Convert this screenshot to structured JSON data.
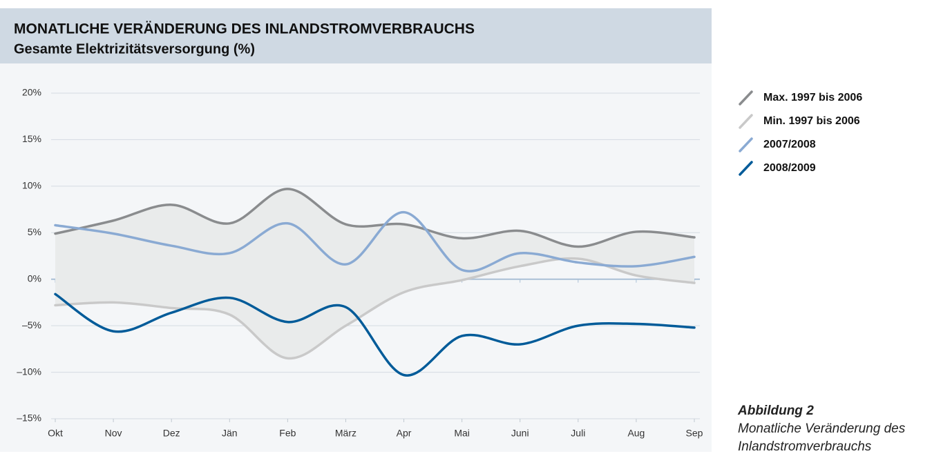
{
  "chart_data": {
    "type": "line",
    "title": "MONATLICHE VERÄNDERUNG DES INLANDSTROMVERBRAUCHS",
    "subtitle": "Gesamte Elektrizitätsversorgung (%)",
    "categories": [
      "Okt",
      "Nov",
      "Dez",
      "Jän",
      "Feb",
      "März",
      "Apr",
      "Mai",
      "Juni",
      "Juli",
      "Aug",
      "Sep"
    ],
    "series": [
      {
        "name": "Max. 1997 bis 2006",
        "color": "#8a8c8e",
        "values": [
          4.9,
          6.3,
          8.0,
          6.0,
          9.7,
          5.9,
          5.9,
          4.4,
          5.2,
          3.5,
          5.1,
          4.5
        ]
      },
      {
        "name": "Min. 1997 bis 2006",
        "color": "#c9c9c9",
        "values": [
          -2.8,
          -2.5,
          -3.1,
          -3.8,
          -8.5,
          -5.0,
          -1.4,
          -0.1,
          1.4,
          2.2,
          0.4,
          -0.4
        ]
      },
      {
        "name": "2007/2008",
        "color": "#8aaad3",
        "values": [
          5.8,
          4.9,
          3.6,
          2.8,
          6.0,
          1.6,
          7.2,
          1.0,
          2.8,
          1.8,
          1.4,
          2.4
        ]
      },
      {
        "name": "2008/2009",
        "color": "#005b99",
        "values": [
          -1.6,
          -5.6,
          -3.6,
          -2.0,
          -4.6,
          -3.0,
          -10.3,
          -6.1,
          -7.0,
          -5.0,
          -4.8,
          -5.2
        ]
      }
    ],
    "band_color": "#e9ebeb",
    "ylim": [
      -15,
      20
    ],
    "yticks": [
      {
        "value": -15,
        "label": "–15%"
      },
      {
        "value": -10,
        "label": "–10%"
      },
      {
        "value": -5,
        "label": "–5%"
      },
      {
        "value": 0,
        "label": "0%"
      },
      {
        "value": 5,
        "label": "5%"
      },
      {
        "value": 10,
        "label": "10%"
      },
      {
        "value": 15,
        "label": "15%"
      },
      {
        "value": 20,
        "label": "20%"
      }
    ],
    "grid": true
  },
  "caption": {
    "label": "Abbildung 2",
    "text": "Monatliche Veränderung des Inlandstromverbrauchs"
  }
}
